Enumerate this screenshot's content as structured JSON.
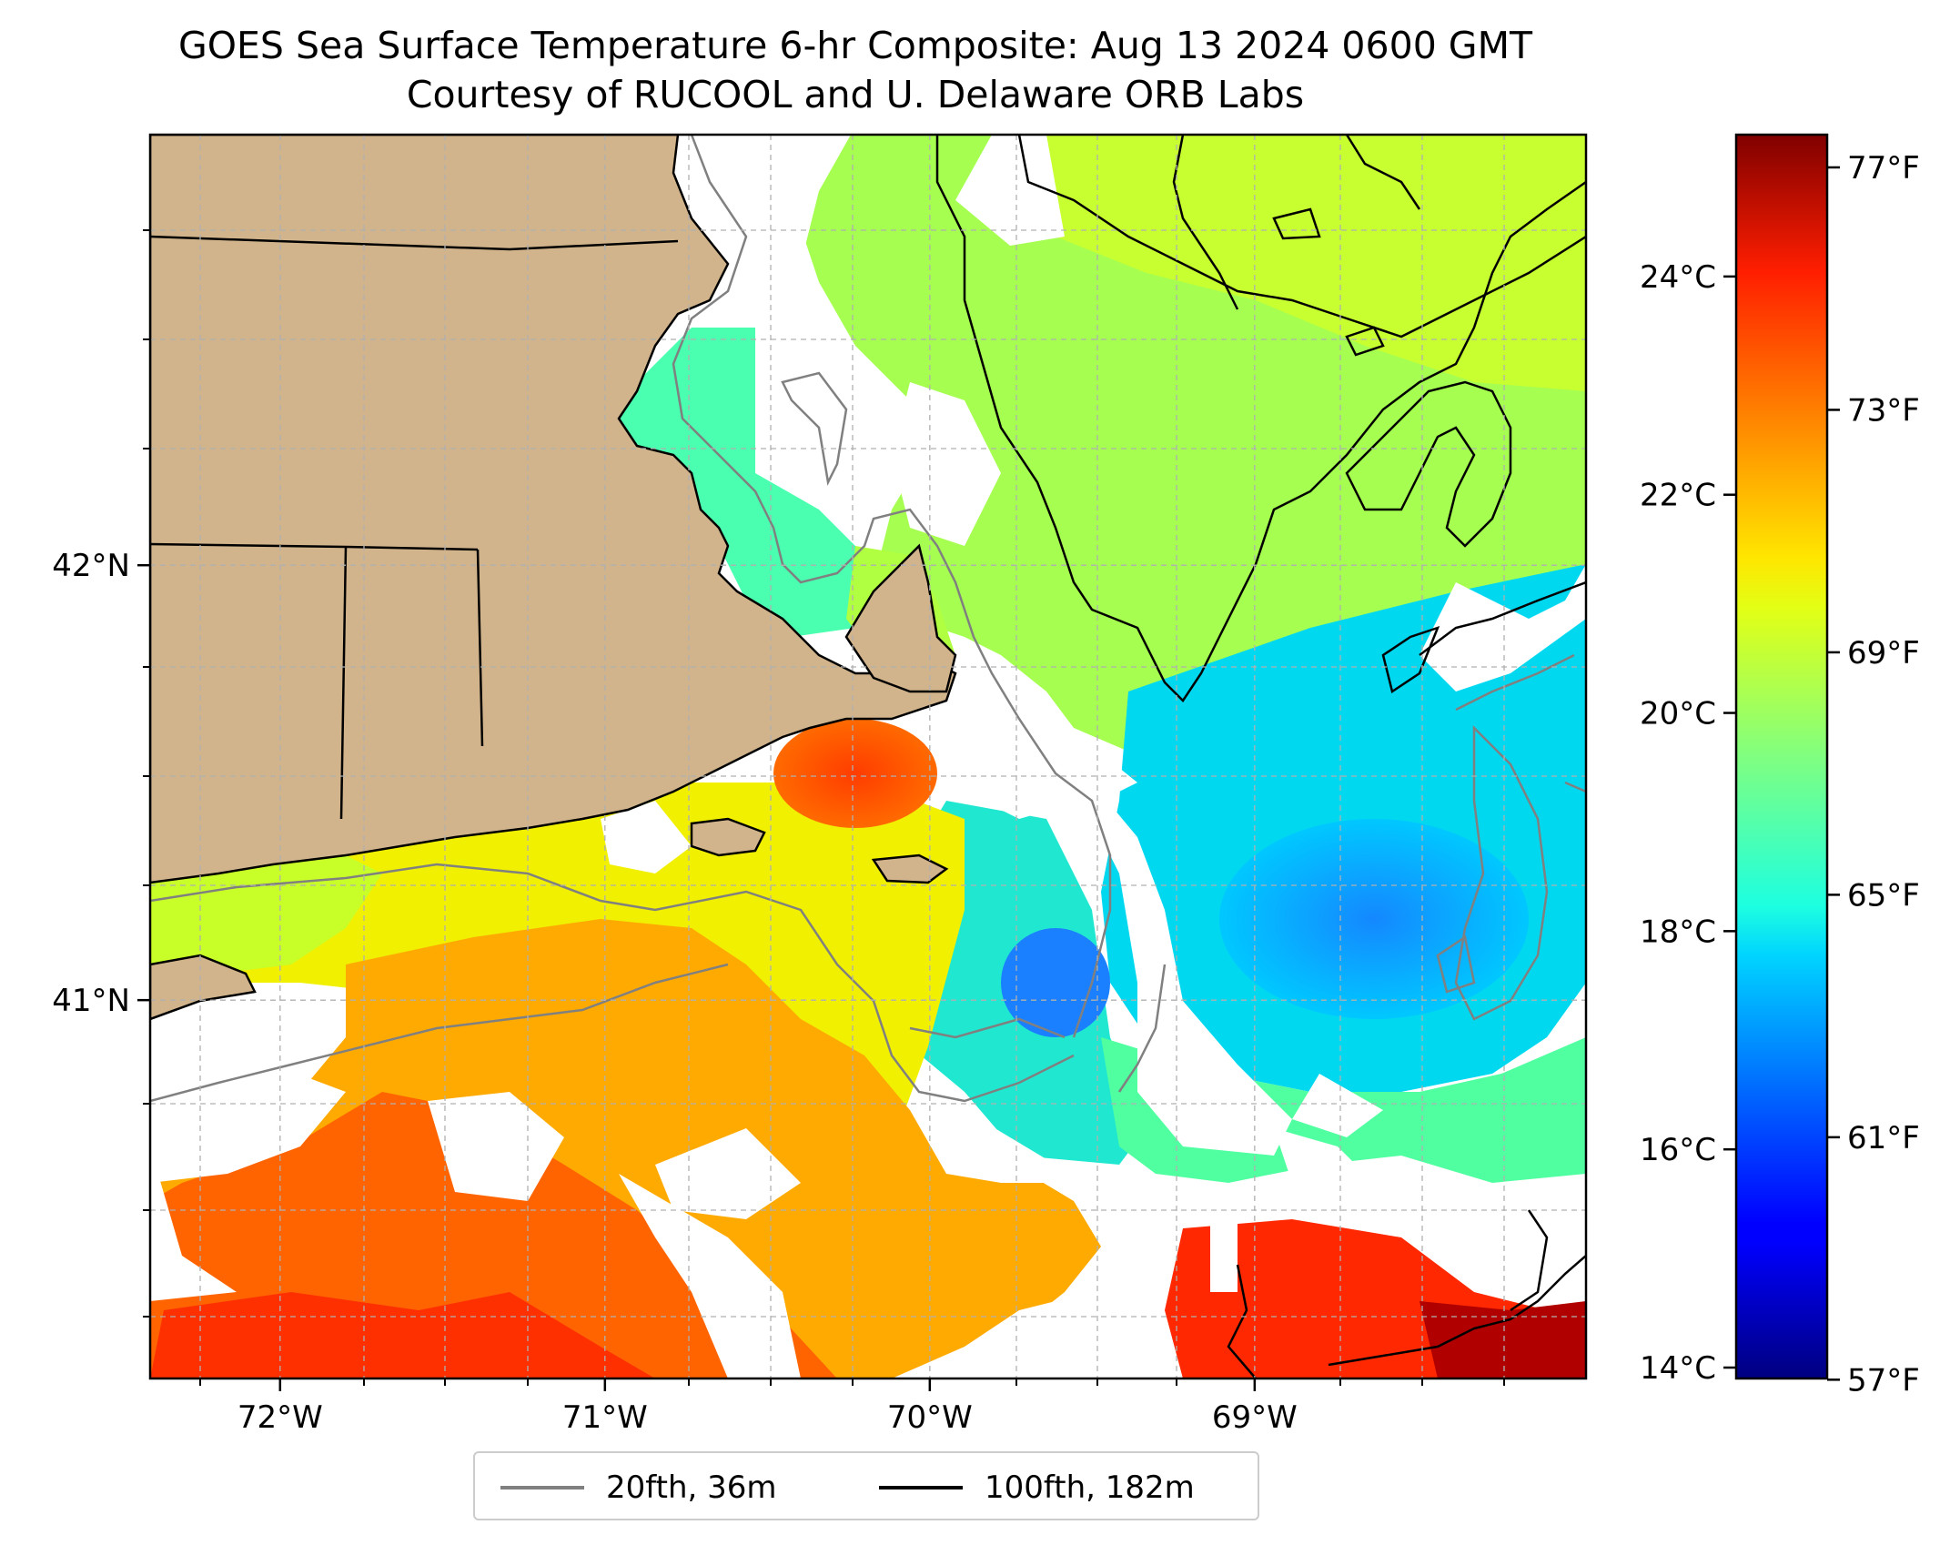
{
  "title": {
    "line1": "GOES Sea Surface Temperature 6-hr Composite: Aug 13 2024 0600 GMT",
    "line2": "Courtesy of RUCOOL and U. Delaware ORB Labs"
  },
  "map": {
    "lon_range": [
      -72.4,
      -67.98
    ],
    "lat_range": [
      40.13,
      42.99
    ],
    "lon_ticks": [
      {
        "label": "72°W",
        "value": -72
      },
      {
        "label": "71°W",
        "value": -71
      },
      {
        "label": "70°W",
        "value": -70
      },
      {
        "label": "69°W",
        "value": -69
      }
    ],
    "lat_ticks": [
      {
        "label": "42°N",
        "value": 42
      },
      {
        "label": "41°N",
        "value": 41
      }
    ],
    "gridlines": true,
    "land_color": "#d2b48c",
    "missing_color": "#ffffff"
  },
  "colorbar": {
    "colormap": "jet",
    "range_c": [
      13.9,
      25.3
    ],
    "celsius_ticks": [
      {
        "label": "14°C",
        "value": 14
      },
      {
        "label": "16°C",
        "value": 16
      },
      {
        "label": "18°C",
        "value": 18
      },
      {
        "label": "20°C",
        "value": 20
      },
      {
        "label": "22°C",
        "value": 22
      },
      {
        "label": "24°C",
        "value": 24
      }
    ],
    "fahrenheit_ticks": [
      {
        "label": "57°F",
        "value": 57
      },
      {
        "label": "61°F",
        "value": 61
      },
      {
        "label": "65°F",
        "value": 65
      },
      {
        "label": "69°F",
        "value": 69
      },
      {
        "label": "73°F",
        "value": 73
      },
      {
        "label": "77°F",
        "value": 77
      }
    ]
  },
  "legend": {
    "items": [
      {
        "label": "20fth, 36m",
        "color": "#808080"
      },
      {
        "label": "100fth, 182m",
        "color": "#000000"
      }
    ]
  }
}
